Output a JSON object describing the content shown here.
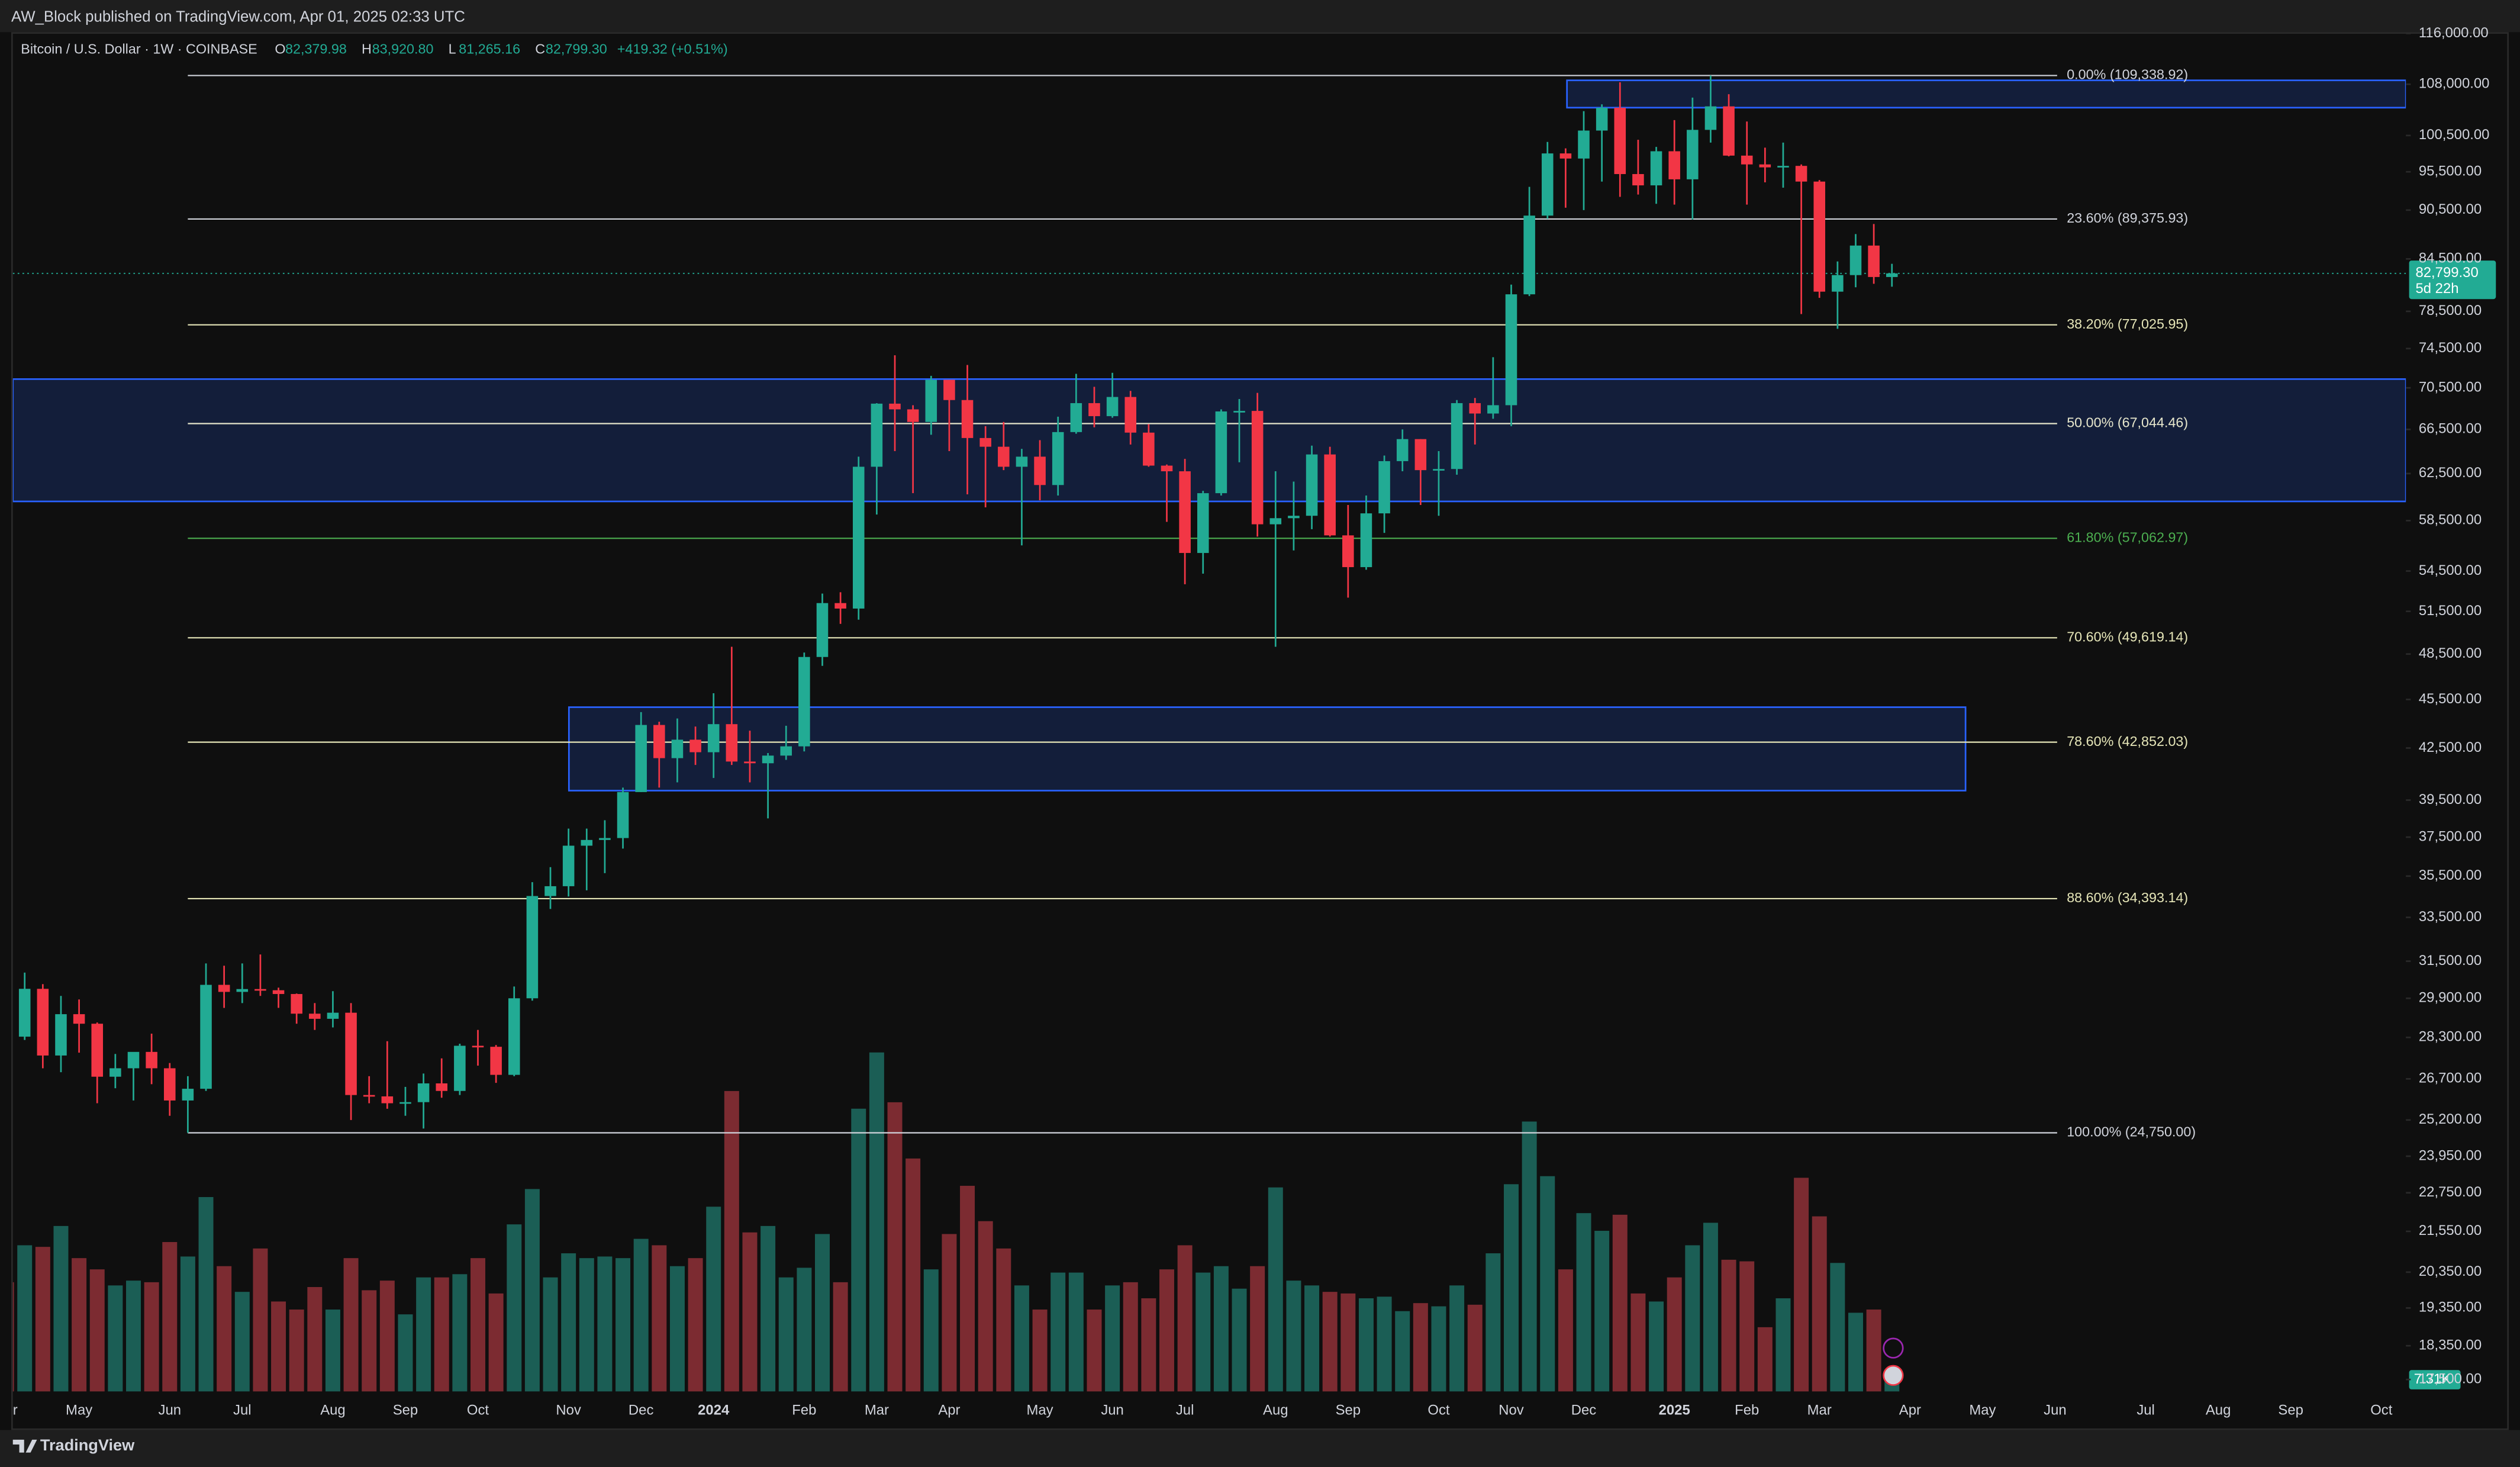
{
  "header": {
    "publisher": "AW_Block published on TradingView.com, Apr 01, 2025 02:33 UTC"
  },
  "footer": {
    "brand": "TradingView"
  },
  "chart_data": {
    "type": "candlestick",
    "legend": {
      "symbol": "Bitcoin / U.S. Dollar · 1W · COINBASE",
      "fields": [
        {
          "key": "O",
          "value": "82,379.98"
        },
        {
          "key": "H",
          "value": "83,920.80"
        },
        {
          "key": "L",
          "value": "81,265.16"
        },
        {
          "key": "C",
          "value": "82,799.30"
        }
      ],
      "change": "+419.32 (+0.51%)"
    },
    "categories": [
      "Apr",
      null,
      null,
      null,
      "May",
      null,
      null,
      null,
      null,
      "Jun",
      null,
      null,
      null,
      "Jul",
      null,
      null,
      null,
      null,
      "Aug",
      null,
      null,
      null,
      "Sep",
      null,
      null,
      null,
      "Oct",
      null,
      null,
      null,
      null,
      "Nov",
      null,
      null,
      null,
      "Dec",
      null,
      null,
      null,
      "2024",
      null,
      null,
      null,
      null,
      "Feb",
      null,
      null,
      null,
      "Mar",
      null,
      null,
      null,
      "Apr",
      null,
      null,
      null,
      null,
      "May",
      null,
      null,
      null,
      "Jun",
      null,
      null,
      null,
      "Jul",
      null,
      null,
      null,
      null,
      "Aug",
      null,
      null,
      null,
      "Sep",
      null,
      null,
      null,
      null,
      "Oct",
      null,
      null,
      null,
      "Nov",
      null,
      null,
      null,
      "Dec",
      null,
      null,
      null,
      null,
      "2025",
      null,
      null,
      null,
      "Feb",
      null,
      null,
      null,
      "Mar",
      null,
      null,
      null,
      null,
      "Apr",
      null,
      null,
      null,
      "May",
      null,
      null,
      null,
      "Jun",
      null,
      null,
      null,
      null,
      "Jul",
      null,
      null,
      null,
      "Aug",
      null,
      null,
      null,
      "Sep",
      null,
      null,
      null,
      null,
      "Oct",
      null
    ],
    "ohlc": [
      [
        28450,
        28800,
        27200,
        28330
      ],
      [
        28330,
        31000,
        28200,
        30300
      ],
      [
        30300,
        30500,
        27100,
        27590
      ],
      [
        27590,
        30000,
        26950,
        29240
      ],
      [
        29240,
        29850,
        27700,
        28850
      ],
      [
        28850,
        28900,
        25800,
        26780
      ],
      [
        26780,
        27650,
        26350,
        27100
      ],
      [
        27100,
        27450,
        25900,
        27730
      ],
      [
        27730,
        28450,
        26500,
        27100
      ],
      [
        27100,
        27300,
        25350,
        25900
      ],
      [
        25900,
        26800,
        24750,
        26330
      ],
      [
        26330,
        31400,
        26250,
        30470
      ],
      [
        30470,
        31300,
        29500,
        30170
      ],
      [
        30170,
        31400,
        29700,
        30290
      ],
      [
        30290,
        31800,
        30000,
        30240
      ],
      [
        30240,
        30350,
        29500,
        30080
      ],
      [
        30080,
        30100,
        28850,
        29260
      ],
      [
        29260,
        29700,
        28600,
        29050
      ],
      [
        29050,
        30200,
        28700,
        29300
      ],
      [
        29300,
        29700,
        25200,
        26100
      ],
      [
        26100,
        26800,
        25800,
        26050
      ],
      [
        26050,
        28150,
        25600,
        25800
      ],
      [
        25800,
        26400,
        25350,
        25840
      ],
      [
        25840,
        26900,
        24900,
        26530
      ],
      [
        26530,
        27480,
        26000,
        26250
      ],
      [
        26250,
        28050,
        26100,
        27970
      ],
      [
        27970,
        28600,
        27200,
        27930
      ],
      [
        27930,
        28000,
        26550,
        26850
      ],
      [
        26850,
        30400,
        26800,
        29900
      ],
      [
        29900,
        35200,
        29800,
        34520
      ],
      [
        34520,
        35950,
        33900,
        35000
      ],
      [
        35000,
        37950,
        34500,
        37050
      ],
      [
        37050,
        37950,
        34800,
        37350
      ],
      [
        37350,
        38400,
        35650,
        37450
      ],
      [
        37450,
        40200,
        36900,
        39950
      ],
      [
        39950,
        44700,
        39950,
        43900
      ],
      [
        43900,
        44100,
        40200,
        41900
      ],
      [
        41900,
        44300,
        40500,
        43000
      ],
      [
        43000,
        43800,
        41500,
        42250
      ],
      [
        42250,
        45900,
        40750,
        43950
      ],
      [
        43950,
        49000,
        41500,
        41700
      ],
      [
        41700,
        43550,
        40500,
        41600
      ],
      [
        41600,
        42200,
        38500,
        42050
      ],
      [
        42050,
        43850,
        41800,
        42600
      ],
      [
        42600,
        48600,
        42300,
        48300
      ],
      [
        48300,
        52800,
        47700,
        52100
      ],
      [
        52100,
        52900,
        50600,
        51700
      ],
      [
        51700,
        64000,
        50900,
        63100
      ],
      [
        63100,
        69000,
        59000,
        68950
      ],
      [
        68950,
        73800,
        64500,
        68400
      ],
      [
        68400,
        68800,
        60800,
        67200
      ],
      [
        67200,
        71700,
        66000,
        71300
      ],
      [
        71300,
        71300,
        64500,
        69300
      ],
      [
        69300,
        72800,
        60700,
        65700
      ],
      [
        65700,
        66800,
        59600,
        64900
      ],
      [
        64900,
        67200,
        62800,
        63100
      ],
      [
        63100,
        64700,
        56500,
        64000
      ],
      [
        64000,
        65500,
        60200,
        61500
      ],
      [
        61500,
        67700,
        60600,
        66250
      ],
      [
        66250,
        71900,
        66100,
        69000
      ],
      [
        69000,
        70600,
        66700,
        67750
      ],
      [
        67750,
        72000,
        67600,
        69600
      ],
      [
        69600,
        70200,
        65100,
        66200
      ],
      [
        66200,
        67000,
        63100,
        63200
      ],
      [
        63200,
        63300,
        58400,
        62700
      ],
      [
        62700,
        63800,
        53500,
        55900
      ],
      [
        55900,
        61000,
        54300,
        60800
      ],
      [
        60800,
        68400,
        60600,
        68200
      ],
      [
        68200,
        69400,
        63500,
        68250
      ],
      [
        68250,
        70000,
        57200,
        58200
      ],
      [
        58200,
        62700,
        49000,
        58700
      ],
      [
        58700,
        61800,
        56100,
        58900
      ],
      [
        58900,
        65000,
        57800,
        64200
      ],
      [
        64200,
        64900,
        57200,
        57300
      ],
      [
        57300,
        59800,
        52500,
        54800
      ],
      [
        54800,
        60600,
        54600,
        59100
      ],
      [
        59100,
        64100,
        57500,
        63600
      ],
      [
        63600,
        66500,
        62700,
        65600
      ],
      [
        65600,
        65600,
        59800,
        62800
      ],
      [
        62800,
        64500,
        58900,
        62900
      ],
      [
        62900,
        69300,
        62400,
        69000
      ],
      [
        69000,
        69500,
        65100,
        68000
      ],
      [
        68000,
        73600,
        67500,
        68800
      ],
      [
        68800,
        81500,
        66800,
        80400
      ],
      [
        80400,
        93500,
        80200,
        89800
      ],
      [
        89800,
        99600,
        89400,
        98000
      ],
      [
        98000,
        98700,
        90800,
        97300
      ],
      [
        97300,
        104000,
        90500,
        101200
      ],
      [
        101200,
        105000,
        94200,
        104500
      ],
      [
        104500,
        108300,
        92200,
        95200
      ],
      [
        95200,
        99900,
        92500,
        93700
      ],
      [
        93700,
        98900,
        91300,
        98300
      ],
      [
        98300,
        102700,
        91200,
        94500
      ],
      [
        94500,
        106000,
        89300,
        101300
      ],
      [
        101300,
        109338.92,
        99500,
        104700
      ],
      [
        104700,
        106500,
        97600,
        97700
      ],
      [
        97700,
        102500,
        91200,
        96500
      ],
      [
        96500,
        98800,
        94100,
        96100
      ],
      [
        96100,
        99500,
        93400,
        96300
      ],
      [
        96300,
        96500,
        78200,
        94200
      ],
      [
        94200,
        94400,
        80000,
        80700
      ],
      [
        80700,
        84200,
        76600,
        82600
      ],
      [
        82600,
        87500,
        81200,
        86100
      ],
      [
        86100,
        88750,
        81600,
        82380
      ],
      [
        82379.98,
        83920.8,
        81265.16,
        82799.3
      ],
      null,
      null,
      null,
      null,
      null,
      null,
      null,
      null,
      null,
      null,
      null,
      null,
      null,
      null,
      null,
      null,
      null,
      null,
      null,
      null,
      null,
      null,
      null,
      null,
      null,
      null,
      null,
      null
    ],
    "up_color": "#22ab94",
    "down_color": "#f23645",
    "ylim": [
      17208,
      116210
    ],
    "log_scale": true,
    "grid": false,
    "yticks": [
      {
        "value": 116000,
        "label": "116,000.00"
      },
      {
        "value": 108000,
        "label": "108,000.00"
      },
      {
        "value": 100500,
        "label": "100,500.00"
      },
      {
        "value": 95500,
        "label": "95,500.00"
      },
      {
        "value": 90500,
        "label": "90,500.00"
      },
      {
        "value": 84500,
        "label": "84,500.00"
      },
      {
        "value": 78500,
        "label": "78,500.00"
      },
      {
        "value": 74500,
        "label": "74,500.00"
      },
      {
        "value": 70500,
        "label": "70,500.00"
      },
      {
        "value": 66500,
        "label": "66,500.00"
      },
      {
        "value": 62500,
        "label": "62,500.00"
      },
      {
        "value": 58500,
        "label": "58,500.00"
      },
      {
        "value": 54500,
        "label": "54,500.00"
      },
      {
        "value": 51500,
        "label": "51,500.00"
      },
      {
        "value": 48500,
        "label": "48,500.00"
      },
      {
        "value": 45500,
        "label": "45,500.00"
      },
      {
        "value": 42500,
        "label": "42,500.00"
      },
      {
        "value": 39500,
        "label": "39,500.00"
      },
      {
        "value": 37500,
        "label": "37,500.00"
      },
      {
        "value": 35500,
        "label": "35,500.00"
      },
      {
        "value": 33500,
        "label": "33,500.00"
      },
      {
        "value": 31500,
        "label": "31,500.00"
      },
      {
        "value": 29900,
        "label": "29,900.00"
      },
      {
        "value": 28300,
        "label": "28,300.00"
      },
      {
        "value": 26700,
        "label": "26,700.00"
      },
      {
        "value": 25200,
        "label": "25,200.00"
      },
      {
        "value": 23950,
        "label": "23,950.00"
      },
      {
        "value": 22750,
        "label": "22,750.00"
      },
      {
        "value": 21550,
        "label": "21,550.00"
      },
      {
        "value": 20350,
        "label": "20,350.00"
      },
      {
        "value": 19350,
        "label": "19,350.00"
      },
      {
        "value": 18350,
        "label": "18,350.00"
      },
      {
        "value": 17500,
        "label": "17,500.00"
      }
    ],
    "volume": {
      "ylim": [
        0,
        250
      ],
      "up_color": "#1b5e55",
      "down_color": "#7c2b31",
      "values": [
        68,
        91,
        90,
        103,
        83,
        76,
        66,
        69,
        68,
        93,
        84,
        121,
        78,
        62,
        89,
        56,
        51,
        65,
        51,
        83,
        63,
        69,
        48,
        71,
        71,
        73,
        83,
        61,
        104,
        126,
        71,
        86,
        83,
        84,
        83,
        95,
        91,
        78,
        83,
        115,
        187,
        99,
        103,
        71,
        77,
        98,
        68,
        176,
        211,
        180,
        145,
        76,
        98,
        128,
        106,
        89,
        66,
        51,
        74,
        74,
        51,
        66,
        68,
        58,
        76,
        91,
        74,
        78,
        64,
        78,
        127,
        69,
        66,
        62,
        61,
        58,
        59,
        50,
        55,
        53,
        66,
        54,
        86,
        129,
        168,
        134,
        76,
        111,
        100,
        110,
        61,
        56,
        71,
        91,
        105,
        82,
        81,
        40,
        58,
        133,
        109,
        80,
        49,
        51,
        7.31,
        null,
        null,
        null,
        null,
        null,
        null,
        null,
        null,
        null,
        null,
        null,
        null,
        null,
        null,
        null,
        null,
        null,
        null,
        null,
        null,
        null,
        null,
        null,
        null,
        null,
        null,
        null,
        null
      ],
      "value_labels": [
        null,
        null,
        null,
        null,
        null,
        null,
        null,
        null,
        null,
        null,
        null,
        null,
        null,
        null,
        null,
        null,
        null,
        null,
        null,
        null,
        null,
        null,
        null,
        null,
        null,
        null,
        null,
        null,
        null,
        null,
        null,
        null,
        null,
        null,
        null,
        null,
        null,
        null,
        null,
        null,
        null,
        null,
        null,
        null,
        null,
        null,
        null,
        null,
        null,
        null,
        null,
        null,
        null,
        null,
        null,
        null,
        null,
        null,
        null,
        null,
        null,
        null,
        null,
        null,
        null,
        null,
        null,
        null,
        null,
        null,
        null,
        null,
        null,
        null,
        null,
        null,
        null,
        null,
        null,
        null,
        null,
        null,
        null,
        null,
        null,
        null,
        null,
        null,
        null,
        null,
        null,
        null,
        null,
        null,
        null,
        null,
        null,
        null,
        null,
        null,
        null,
        null,
        null,
        null,
        "7.31K",
        null,
        null,
        null,
        null,
        null,
        null,
        null,
        null,
        null,
        null,
        null,
        null,
        null,
        null,
        null,
        null,
        null,
        null,
        null,
        null,
        null,
        null,
        null,
        null,
        null,
        null,
        null,
        null
      ]
    },
    "last_price": {
      "value": 82799.3,
      "label": "82,799.30",
      "countdown": "5d 22h"
    },
    "fib_levels": [
      {
        "label": "0.00% (109,338.92)",
        "value": 109338.92,
        "color": "#d1d4dc"
      },
      {
        "label": "23.60% (89,375.93)",
        "value": 89375.93,
        "color": "#d1d4dc"
      },
      {
        "label": "38.20% (77,025.95)",
        "value": 77025.95,
        "color": "#e6e6b8"
      },
      {
        "label": "50.00% (67,044.46)",
        "value": 67044.46,
        "color": "#e6e6cc"
      },
      {
        "label": "61.80% (57,062.97)",
        "value": 57062.97,
        "color": "#4caf50"
      },
      {
        "label": "70.60% (49,619.14)",
        "value": 49619.14,
        "color": "#e6e6b8"
      },
      {
        "label": "78.60% (42,852.03)",
        "value": 42852.03,
        "color": "#e6e6b8"
      },
      {
        "label": "88.60% (34,393.14)",
        "value": 34393.14,
        "color": "#e6e6b8"
      },
      {
        "label": "100.00% (24,750.00)",
        "value": 24750,
        "color": "#d1d4dc"
      }
    ],
    "zones": [
      {
        "top": 108600,
        "bottom": 104510
      },
      {
        "top": 71370,
        "bottom": 60100
      },
      {
        "top": 45010,
        "bottom": 40030
      }
    ]
  }
}
